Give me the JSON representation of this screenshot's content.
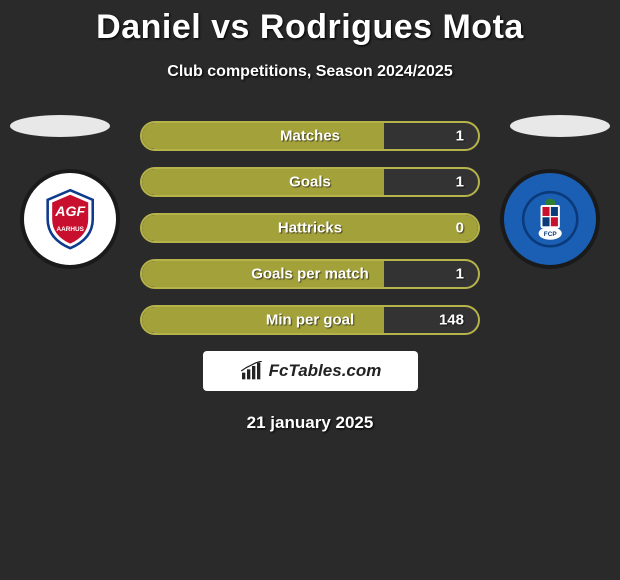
{
  "title": "Daniel vs Rodrigues Mota",
  "subtitle": "Club competitions, Season 2024/2025",
  "date": "21 january 2025",
  "brand": "FcTables.com",
  "accent_color": "#a3a13a",
  "accent_border": "#b5b34a",
  "stats": [
    {
      "label": "Matches",
      "value": "1",
      "fill_pct": 72
    },
    {
      "label": "Goals",
      "value": "1",
      "fill_pct": 72
    },
    {
      "label": "Hattricks",
      "value": "0",
      "fill_pct": 100
    },
    {
      "label": "Goals per match",
      "value": "1",
      "fill_pct": 72
    },
    {
      "label": "Min per goal",
      "value": "148",
      "fill_pct": 72
    }
  ],
  "left_club": {
    "name": "AGF Aarhus",
    "badge_bg": "#ffffff",
    "primary": "#c8102e",
    "secondary": "#0f3b8c"
  },
  "right_club": {
    "name": "FC Porto",
    "badge_bg": "#1a5fb4",
    "primary": "#ffffff",
    "secondary": "#0a3a7a"
  }
}
